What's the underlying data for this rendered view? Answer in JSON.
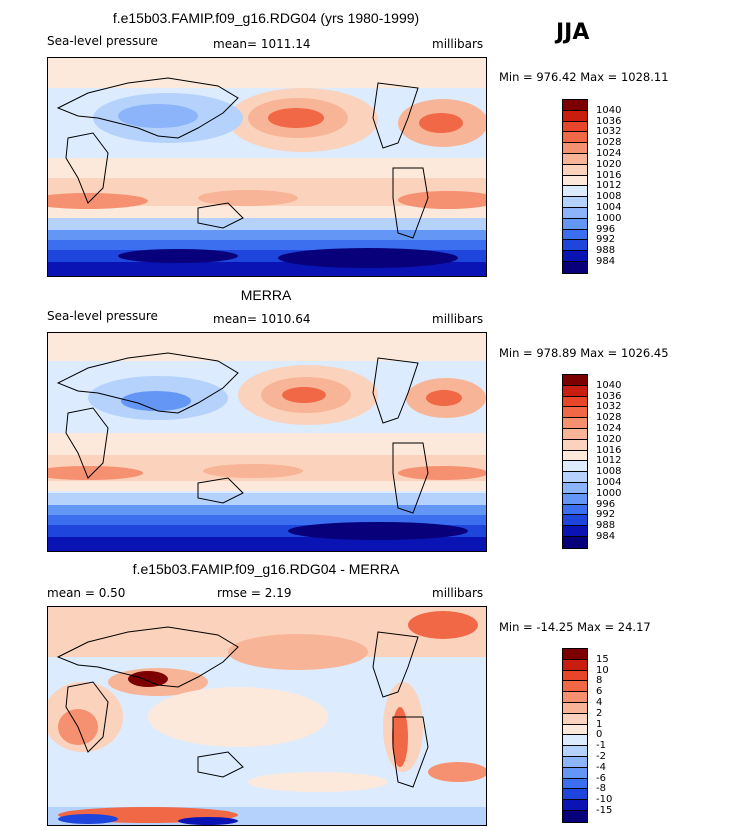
{
  "season": "JJA",
  "colors": {
    "abs": [
      "#08007a",
      "#0a14b4",
      "#1e46dc",
      "#3c6ef0",
      "#6496f5",
      "#8cb4fa",
      "#b4d2fc",
      "#dcebfd",
      "#fde9dc",
      "#fbd2bc",
      "#f8b496",
      "#f59070",
      "#f06846",
      "#e8462a",
      "#c81e10",
      "#7d0000"
    ],
    "diff": [
      "#08007a",
      "#0a14b4",
      "#1e46dc",
      "#3c6ef0",
      "#6496f5",
      "#8cb4fa",
      "#b4d2fc",
      "#dcebfd",
      "#fde9dc",
      "#fbd2bc",
      "#f8b496",
      "#f59070",
      "#f06846",
      "#e8462a",
      "#c81e10",
      "#7d0000"
    ]
  },
  "panels": [
    {
      "title": "f.e15b03.FAMIP.f09_g16.RDG04 (yrs 1980-1999)",
      "left_label": "Sea-level pressure",
      "center_label": "mean= 1011.14",
      "units": "millibars",
      "minmax": "Min = 976.42 Max = 1028.11",
      "ticks": [
        "1040",
        "1036",
        "1032",
        "1028",
        "1024",
        "1020",
        "1016",
        "1012",
        "1008",
        "1004",
        "1000",
        "996",
        "992",
        "988",
        "984"
      ]
    },
    {
      "title": "MERRA",
      "left_label": "Sea-level pressure",
      "center_label": "mean= 1010.64",
      "units": "millibars",
      "minmax": "Min = 978.89 Max = 1026.45",
      "ticks": [
        "1040",
        "1036",
        "1032",
        "1028",
        "1024",
        "1020",
        "1016",
        "1012",
        "1008",
        "1004",
        "1000",
        "996",
        "992",
        "988",
        "984"
      ]
    },
    {
      "title": "f.e15b03.FAMIP.f09_g16.RDG04 - MERRA",
      "left_label": "mean =    0.50",
      "center_label": "rmse =    2.19",
      "units": "millibars",
      "minmax": "Min = -14.25 Max =  24.17",
      "ticks": [
        "15",
        "10",
        "8",
        "6",
        "4",
        "2",
        "1",
        "0",
        "-1",
        "-2",
        "-4",
        "-6",
        "-8",
        "-10",
        "-15"
      ]
    }
  ]
}
